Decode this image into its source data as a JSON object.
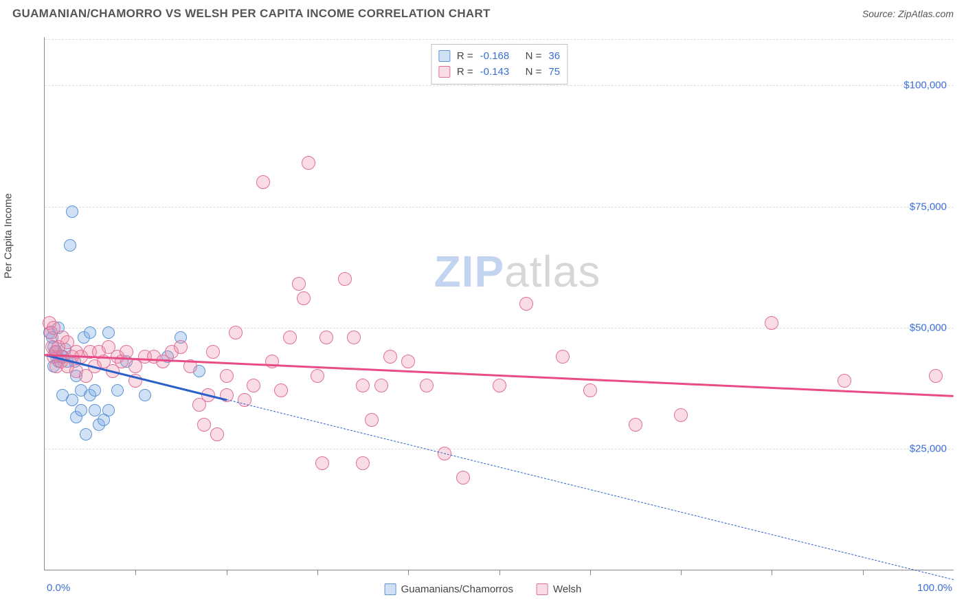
{
  "title": "GUAMANIAN/CHAMORRO VS WELSH PER CAPITA INCOME CORRELATION CHART",
  "source": "Source: ZipAtlas.com",
  "y_axis_label": "Per Capita Income",
  "watermark": {
    "part1": "ZIP",
    "part2": "atlas"
  },
  "chart": {
    "type": "scatter",
    "xlim": [
      0,
      100
    ],
    "ylim": [
      0,
      110000
    ],
    "x_tick_step": 10,
    "x_label_min": "0.0%",
    "x_label_max": "100.0%",
    "y_ticks": [
      {
        "v": 25000,
        "label": "$25,000"
      },
      {
        "v": 50000,
        "label": "$50,000"
      },
      {
        "v": 75000,
        "label": "$75,000"
      },
      {
        "v": 100000,
        "label": "$100,000"
      }
    ],
    "grid_color": "#dddddd",
    "axis_color": "#888888",
    "background": "#ffffff",
    "series": [
      {
        "key": "guamanian",
        "label": "Guamanians/Chamorros",
        "fill": "rgba(120,170,230,0.35)",
        "stroke": "#5a94d6",
        "trend_color": "#2a5fc9",
        "marker_radius": 9,
        "R": "-0.168",
        "N": "36",
        "trend": {
          "x1": 0,
          "y1": 44500,
          "x2": 100,
          "y2": -2000,
          "solid_until_x": 20
        },
        "points": [
          [
            0.5,
            49000
          ],
          [
            0.8,
            48000
          ],
          [
            1.0,
            46000
          ],
          [
            1.0,
            42000
          ],
          [
            1.2,
            45000
          ],
          [
            1.3,
            44000
          ],
          [
            1.5,
            50000
          ],
          [
            1.5,
            43000
          ],
          [
            2.0,
            44000
          ],
          [
            2.0,
            36000
          ],
          [
            2.3,
            45500
          ],
          [
            2.5,
            43000
          ],
          [
            2.8,
            67000
          ],
          [
            3.0,
            74000
          ],
          [
            3.0,
            35000
          ],
          [
            3.3,
            43000
          ],
          [
            3.5,
            40000
          ],
          [
            3.5,
            31500
          ],
          [
            4.0,
            37000
          ],
          [
            4.0,
            33000
          ],
          [
            4.3,
            48000
          ],
          [
            4.5,
            28000
          ],
          [
            5.0,
            49000
          ],
          [
            5.0,
            36000
          ],
          [
            5.5,
            33000
          ],
          [
            5.5,
            37000
          ],
          [
            6.0,
            30000
          ],
          [
            6.5,
            31000
          ],
          [
            7.0,
            49000
          ],
          [
            7.0,
            33000
          ],
          [
            8.0,
            37000
          ],
          [
            9.0,
            43000
          ],
          [
            11.0,
            36000
          ],
          [
            13.5,
            44000
          ],
          [
            15.0,
            48000
          ],
          [
            17.0,
            41000
          ]
        ]
      },
      {
        "key": "welsh",
        "label": "Welsh",
        "fill": "rgba(240,140,170,0.30)",
        "stroke": "#e06f97",
        "trend_color": "#e94b86",
        "marker_radius": 10,
        "R": "-0.143",
        "N": "75",
        "trend": {
          "x1": 0,
          "y1": 44500,
          "x2": 100,
          "y2": 36000,
          "solid_until_x": 100
        },
        "points": [
          [
            0.5,
            51000
          ],
          [
            0.7,
            49000
          ],
          [
            0.8,
            46000
          ],
          [
            1.0,
            50000
          ],
          [
            1.0,
            44000
          ],
          [
            1.2,
            45000
          ],
          [
            1.3,
            42000
          ],
          [
            1.5,
            46000
          ],
          [
            1.8,
            43000
          ],
          [
            2.0,
            48000
          ],
          [
            2.0,
            44000
          ],
          [
            2.5,
            47000
          ],
          [
            2.5,
            42000
          ],
          [
            3.0,
            44000
          ],
          [
            3.5,
            45000
          ],
          [
            3.5,
            41000
          ],
          [
            4.0,
            44000
          ],
          [
            4.5,
            40000
          ],
          [
            5.0,
            45000
          ],
          [
            5.5,
            42000
          ],
          [
            6.0,
            45000
          ],
          [
            6.5,
            43000
          ],
          [
            7.0,
            46000
          ],
          [
            7.5,
            41000
          ],
          [
            8.0,
            44000
          ],
          [
            8.5,
            43000
          ],
          [
            9.0,
            45000
          ],
          [
            10.0,
            42000
          ],
          [
            10.0,
            39000
          ],
          [
            11.0,
            44000
          ],
          [
            12.0,
            44000
          ],
          [
            13.0,
            43000
          ],
          [
            14.0,
            45000
          ],
          [
            15.0,
            46000
          ],
          [
            16.0,
            42000
          ],
          [
            17.0,
            34000
          ],
          [
            17.5,
            30000
          ],
          [
            18.0,
            36000
          ],
          [
            18.5,
            45000
          ],
          [
            19.0,
            28000
          ],
          [
            20.0,
            36000
          ],
          [
            20.0,
            40000
          ],
          [
            21.0,
            49000
          ],
          [
            22.0,
            35000
          ],
          [
            23.0,
            38000
          ],
          [
            24.0,
            80000
          ],
          [
            25.0,
            43000
          ],
          [
            26.0,
            37000
          ],
          [
            27.0,
            48000
          ],
          [
            28.0,
            59000
          ],
          [
            28.5,
            56000
          ],
          [
            29.0,
            84000
          ],
          [
            30.0,
            40000
          ],
          [
            30.5,
            22000
          ],
          [
            31.0,
            48000
          ],
          [
            33.0,
            60000
          ],
          [
            34.0,
            48000
          ],
          [
            35.0,
            22000
          ],
          [
            35.0,
            38000
          ],
          [
            36.0,
            31000
          ],
          [
            37.0,
            38000
          ],
          [
            38.0,
            44000
          ],
          [
            40.0,
            43000
          ],
          [
            42.0,
            38000
          ],
          [
            44.0,
            24000
          ],
          [
            46.0,
            19000
          ],
          [
            50.0,
            38000
          ],
          [
            53.0,
            55000
          ],
          [
            57.0,
            44000
          ],
          [
            60.0,
            37000
          ],
          [
            65.0,
            30000
          ],
          [
            70.0,
            32000
          ],
          [
            80.0,
            51000
          ],
          [
            88.0,
            39000
          ],
          [
            98.0,
            40000
          ]
        ]
      }
    ]
  },
  "stats_labels": {
    "R": "R =",
    "N": "N ="
  }
}
